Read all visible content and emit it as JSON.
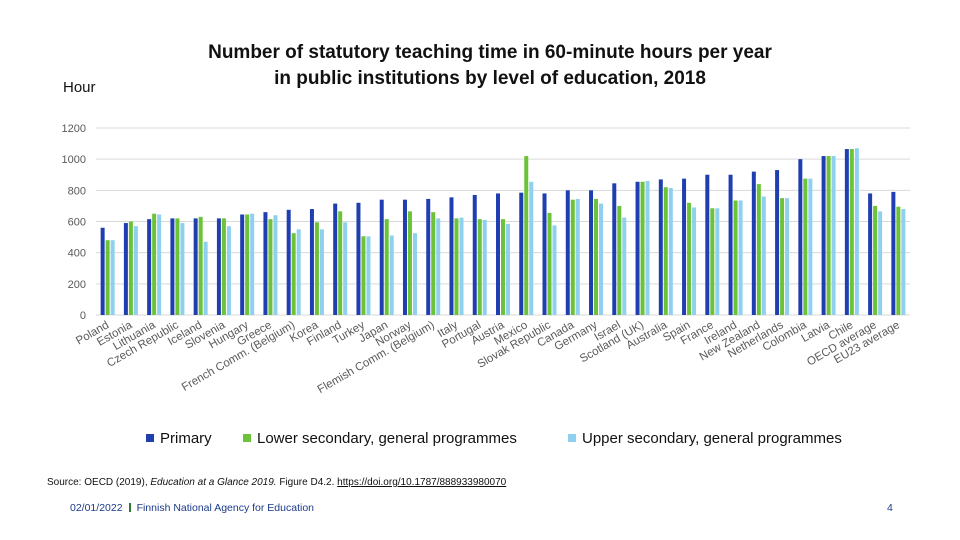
{
  "title_line1": "Number of statutory teaching time in 60-minute hours per year",
  "title_line2": "in public institutions by level of education, 2018",
  "unit_label": "Hour",
  "source": {
    "prefix": "Source: OECD (2019), ",
    "italic": "Education at a Glance 2019.",
    "suffix": " Figure D4.2. ",
    "link_text": "https://doi.org/10.1787/888933980070"
  },
  "footer": {
    "date": "02/01/2022",
    "organization": "Finnish National Agency for Education",
    "page_number": "4"
  },
  "colors": {
    "primary": "#1f3fb0",
    "lower": "#6cc33a",
    "upper": "#8fd0ee",
    "grid": "#d9d9d9",
    "axis_text": "#595959"
  },
  "chart_data": {
    "type": "bar",
    "ylim": [
      0,
      1200
    ],
    "yticks": [
      0,
      200,
      400,
      600,
      800,
      1000,
      1200
    ],
    "grid": true,
    "legend_position": "bottom",
    "categories": [
      "Poland",
      "Estonia",
      "Lithuania",
      "Czech Republic",
      "Iceland",
      "Slovenia",
      "Hungary",
      "Greece",
      "French Comm. (Belgium)",
      "Korea",
      "Finland",
      "Turkey",
      "Japan",
      "Norway",
      "Flemish Comm. (Belgium)",
      "Italy",
      "Portugal",
      "Austria",
      "Mexico",
      "Slovak Republic",
      "Canada",
      "Germany",
      "Israel",
      "Scotland (UK)",
      "Australia",
      "Spain",
      "France",
      "Ireland",
      "New Zealand",
      "Netherlands",
      "Colombia",
      "Latvia",
      "Chile",
      "OECD average",
      "EU23 average"
    ],
    "series": [
      {
        "name": "Primary",
        "values": [
          560,
          590,
          615,
          620,
          620,
          620,
          645,
          660,
          675,
          680,
          715,
          720,
          740,
          740,
          745,
          755,
          770,
          780,
          785,
          780,
          800,
          800,
          845,
          855,
          870,
          875,
          900,
          900,
          920,
          930,
          1000,
          1020,
          1065,
          780,
          790
        ]
      },
      {
        "name": "Lower secondary, general programmes",
        "values": [
          480,
          600,
          650,
          620,
          630,
          620,
          645,
          615,
          525,
          595,
          665,
          505,
          615,
          665,
          660,
          620,
          615,
          615,
          1020,
          655,
          740,
          745,
          700,
          855,
          820,
          720,
          685,
          735,
          840,
          750,
          875,
          1020,
          1065,
          700,
          695
        ]
      },
      {
        "name": "Upper secondary, general programmes",
        "values": [
          480,
          570,
          645,
          590,
          470,
          570,
          650,
          640,
          550,
          550,
          595,
          505,
          510,
          525,
          620,
          625,
          610,
          585,
          855,
          575,
          745,
          715,
          625,
          860,
          815,
          690,
          685,
          735,
          760,
          750,
          875,
          1020,
          1070,
          665,
          680
        ]
      }
    ]
  }
}
